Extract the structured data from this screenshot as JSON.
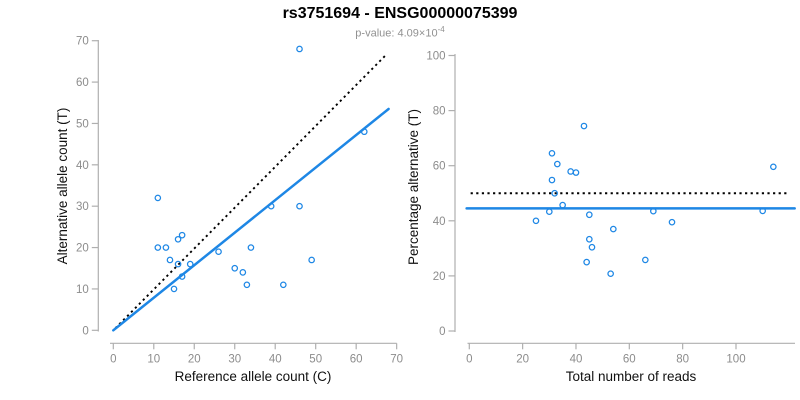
{
  "header": {
    "title": "rs3751694 - ENSG00000075399",
    "pvalue_prefix": "p-value: 4.09×10",
    "pvalue_exponent": "-4"
  },
  "colors": {
    "accent_blue": "#1E87E5",
    "dotted_black": "#000000",
    "axis_line": "#AFAFAF",
    "tick_label": "#8C8C8C",
    "axis_title": "#111111",
    "subtitle": "#919191",
    "background": "#FFFFFF"
  },
  "chart_data": [
    {
      "id": "allele-count-scatter",
      "type": "scatter",
      "xlabel": "Reference allele count (C)",
      "ylabel": "Alternative allele count (T)",
      "xlim": [
        0,
        70
      ],
      "ylim": [
        0,
        70
      ],
      "xticks": [
        0,
        10,
        20,
        30,
        40,
        50,
        60,
        70
      ],
      "yticks": [
        0,
        10,
        20,
        30,
        40,
        50,
        60,
        70
      ],
      "grid": false,
      "legend": false,
      "points": [
        [
          46,
          68
        ],
        [
          62,
          48
        ],
        [
          11,
          32
        ],
        [
          39,
          30
        ],
        [
          46,
          30
        ],
        [
          17,
          23
        ],
        [
          16,
          22
        ],
        [
          11,
          20
        ],
        [
          13,
          20
        ],
        [
          34,
          20
        ],
        [
          26,
          19
        ],
        [
          14,
          17
        ],
        [
          49,
          17
        ],
        [
          16,
          16
        ],
        [
          19,
          16
        ],
        [
          30,
          15
        ],
        [
          32,
          14
        ],
        [
          17,
          13
        ],
        [
          33,
          11
        ],
        [
          42,
          11
        ],
        [
          15,
          10
        ]
      ],
      "lines": [
        {
          "name": "identity-line",
          "style": "dotted",
          "color_key": "dotted_black",
          "x1": 0.5,
          "y1": 0.5,
          "x2": 67.2,
          "y2": 66.4
        },
        {
          "name": "fit-line",
          "style": "solid",
          "color_key": "accent_blue",
          "x1": 0,
          "y1": 0,
          "x2": 68,
          "y2": 53.5
        }
      ]
    },
    {
      "id": "percentage-scatter",
      "type": "scatter",
      "xlabel": "Total number of reads",
      "ylabel": "Percentage alternative (T)",
      "xlim": [
        0,
        100
      ],
      "ylim": [
        0,
        100
      ],
      "xticks": [
        0,
        20,
        40,
        60,
        80,
        100
      ],
      "yticks": [
        0,
        20,
        40,
        60,
        80,
        100
      ],
      "grid": false,
      "legend": false,
      "points": [
        [
          114,
          59.6
        ],
        [
          110,
          43.6
        ],
        [
          43,
          74.4
        ],
        [
          69,
          43.5
        ],
        [
          76,
          39.5
        ],
        [
          40,
          57.5
        ],
        [
          38,
          57.9
        ],
        [
          31,
          64.5
        ],
        [
          33,
          60.6
        ],
        [
          54,
          37.0
        ],
        [
          45,
          42.2
        ],
        [
          31,
          54.8
        ],
        [
          66,
          25.8
        ],
        [
          32,
          50.0
        ],
        [
          35,
          45.7
        ],
        [
          45,
          33.3
        ],
        [
          46,
          30.4
        ],
        [
          30,
          43.3
        ],
        [
          44,
          25.0
        ],
        [
          53,
          20.8
        ],
        [
          25,
          40.0
        ]
      ],
      "lines": [
        {
          "name": "null-50pct-line",
          "style": "dotted",
          "color_key": "dotted_black",
          "x1": 0.5,
          "y1": 50,
          "x2": 119.5,
          "y2": 50
        },
        {
          "name": "mean-pct-line",
          "style": "solid",
          "color_key": "accent_blue",
          "x1": -1,
          "y1": 44.5,
          "x2": 122,
          "y2": 44.5
        }
      ]
    }
  ]
}
